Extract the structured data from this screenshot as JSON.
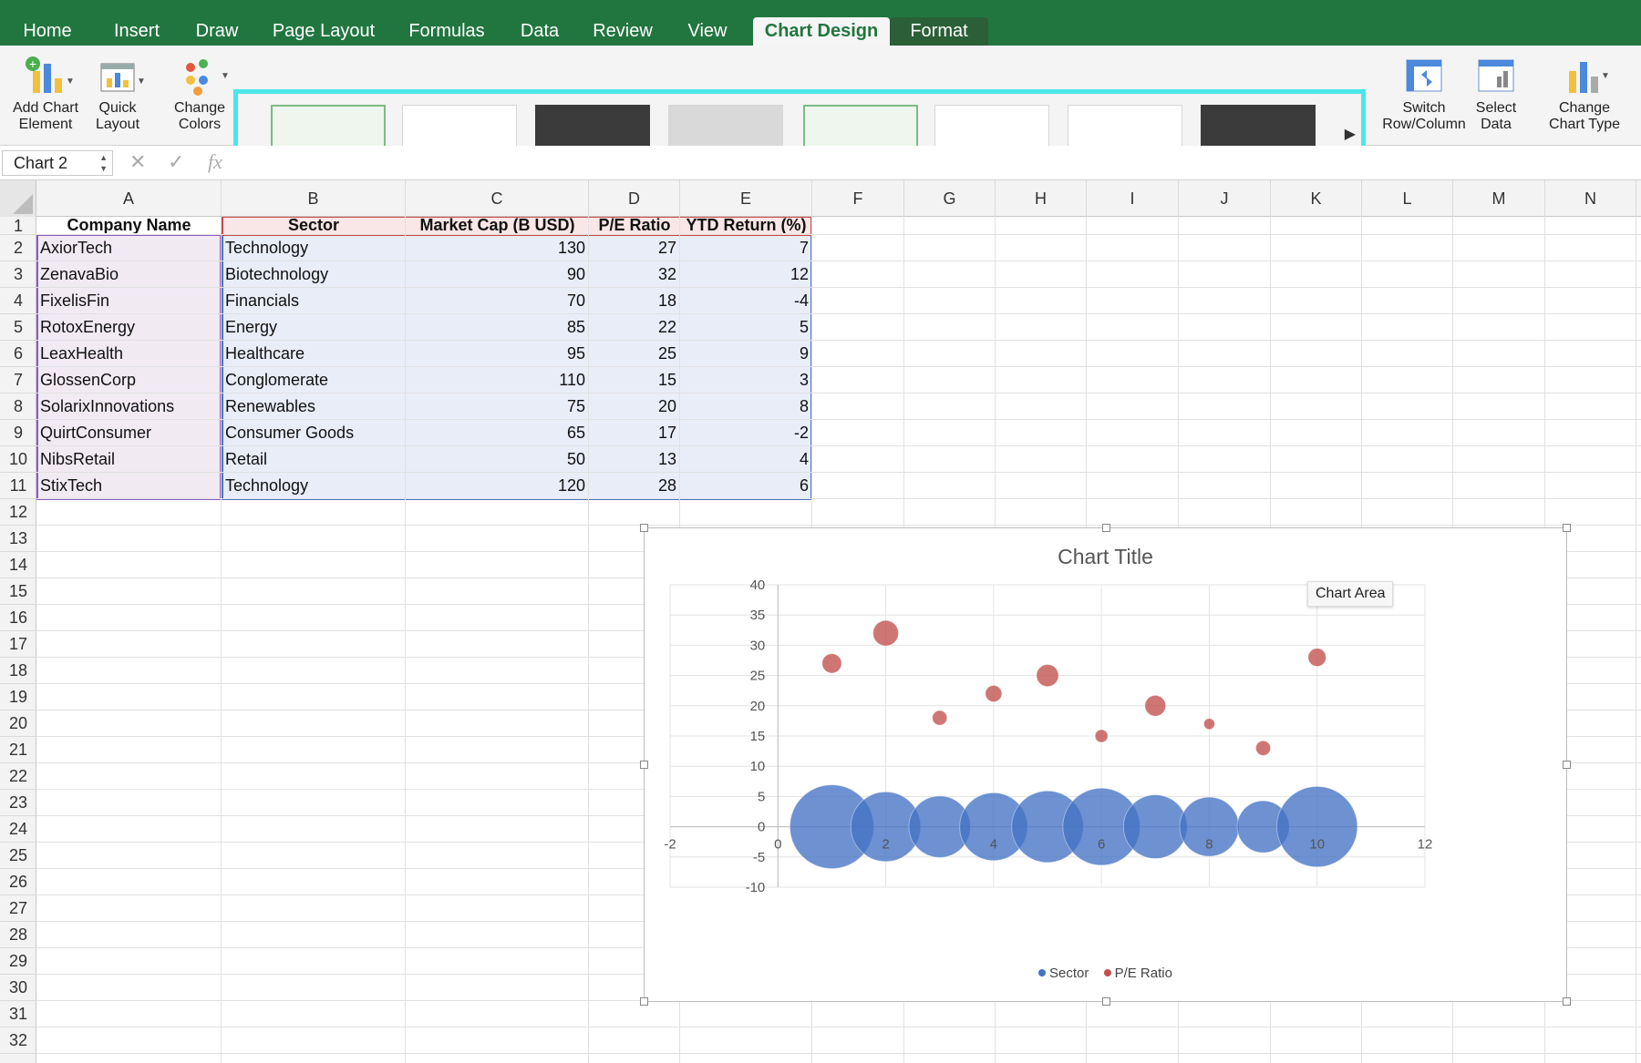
{
  "tabs": [
    {
      "label": "Home"
    },
    {
      "label": "Insert"
    },
    {
      "label": "Draw"
    },
    {
      "label": "Page Layout"
    },
    {
      "label": "Formulas"
    },
    {
      "label": "Data"
    },
    {
      "label": "Review"
    },
    {
      "label": "View"
    },
    {
      "label": "Chart Design"
    },
    {
      "label": "Format"
    }
  ],
  "ribbon": {
    "add_chart_element": "Add Chart\nElement",
    "add_chart_element_l1": "Add Chart",
    "add_chart_element_l2": "Element",
    "quick_layout_l1": "Quick",
    "quick_layout_l2": "Layout",
    "change_colors_l1": "Change",
    "change_colors_l2": "Colors",
    "switch_l1": "Switch",
    "switch_l2": "Row/Column",
    "select_l1": "Select",
    "select_l2": "Data",
    "change_type_l1": "Change",
    "change_type_l2": "Chart Type"
  },
  "formula_bar": {
    "name_box": "Chart 2",
    "fx": "fx"
  },
  "columns": [
    "A",
    "B",
    "C",
    "D",
    "E",
    "F",
    "G",
    "H",
    "I",
    "J",
    "K",
    "L",
    "M",
    "N"
  ],
  "rows": [
    "1",
    "2",
    "3",
    "4",
    "5",
    "6",
    "7",
    "8",
    "9",
    "10",
    "11",
    "12",
    "13",
    "14",
    "15",
    "16",
    "17",
    "18",
    "19",
    "20",
    "21",
    "22",
    "23",
    "24",
    "25",
    "26",
    "27",
    "28",
    "29",
    "30",
    "31",
    "32"
  ],
  "table": {
    "headers": [
      "Company Name",
      "Sector",
      "Market Cap (B USD)",
      "P/E Ratio",
      "YTD Return (%)"
    ],
    "rows": [
      [
        "AxiorTech",
        "Technology",
        "130",
        "27",
        "7"
      ],
      [
        "ZenavaBio",
        "Biotechnology",
        "90",
        "32",
        "12"
      ],
      [
        "FixelisFin",
        "Financials",
        "70",
        "18",
        "-4"
      ],
      [
        "RotoxEnergy",
        "Energy",
        "85",
        "22",
        "5"
      ],
      [
        "LeaxHealth",
        "Healthcare",
        "95",
        "25",
        "9"
      ],
      [
        "GlossenCorp",
        "Conglomerate",
        "110",
        "15",
        "3"
      ],
      [
        "SolarixInnovations",
        "Renewables",
        "75",
        "20",
        "8"
      ],
      [
        "QuirtConsumer",
        "Consumer Goods",
        "65",
        "17",
        "-2"
      ],
      [
        "NibsRetail",
        "Retail",
        "50",
        "13",
        "4"
      ],
      [
        "StixTech",
        "Technology",
        "120",
        "28",
        "6"
      ]
    ]
  },
  "chart": {
    "title": "Chart Title",
    "tooltip": "Chart Area",
    "legend": [
      {
        "name": "Sector",
        "color": "#4472c4"
      },
      {
        "name": "P/E Ratio",
        "color": "#c0504d"
      }
    ]
  },
  "chart_data": {
    "type": "scatter",
    "title": "Chart Title",
    "xlim": [
      -2,
      12
    ],
    "ylim": [
      -10,
      40
    ],
    "x_ticks": [
      "-2",
      "0",
      "2",
      "4",
      "6",
      "8",
      "10",
      "12"
    ],
    "y_ticks": [
      "40",
      "35",
      "30",
      "25",
      "20",
      "15",
      "10",
      "5",
      "0",
      "-5",
      "-10"
    ],
    "grid": true,
    "legend_position": "bottom",
    "series": [
      {
        "name": "Sector",
        "color": "#4472c4",
        "x": [
          1,
          2,
          3,
          4,
          5,
          6,
          7,
          8,
          9,
          10
        ],
        "y": [
          0,
          0,
          0,
          0,
          0,
          0,
          0,
          0,
          0,
          0
        ],
        "size": [
          130,
          90,
          70,
          85,
          95,
          110,
          75,
          65,
          50,
          120
        ]
      },
      {
        "name": "P/E Ratio",
        "color": "#c0504d",
        "x": [
          1,
          2,
          3,
          4,
          5,
          6,
          7,
          8,
          9,
          10
        ],
        "y": [
          27,
          32,
          18,
          22,
          25,
          15,
          20,
          17,
          13,
          28
        ],
        "size": [
          7,
          12,
          -4,
          5,
          9,
          3,
          8,
          -2,
          4,
          6
        ]
      }
    ]
  }
}
